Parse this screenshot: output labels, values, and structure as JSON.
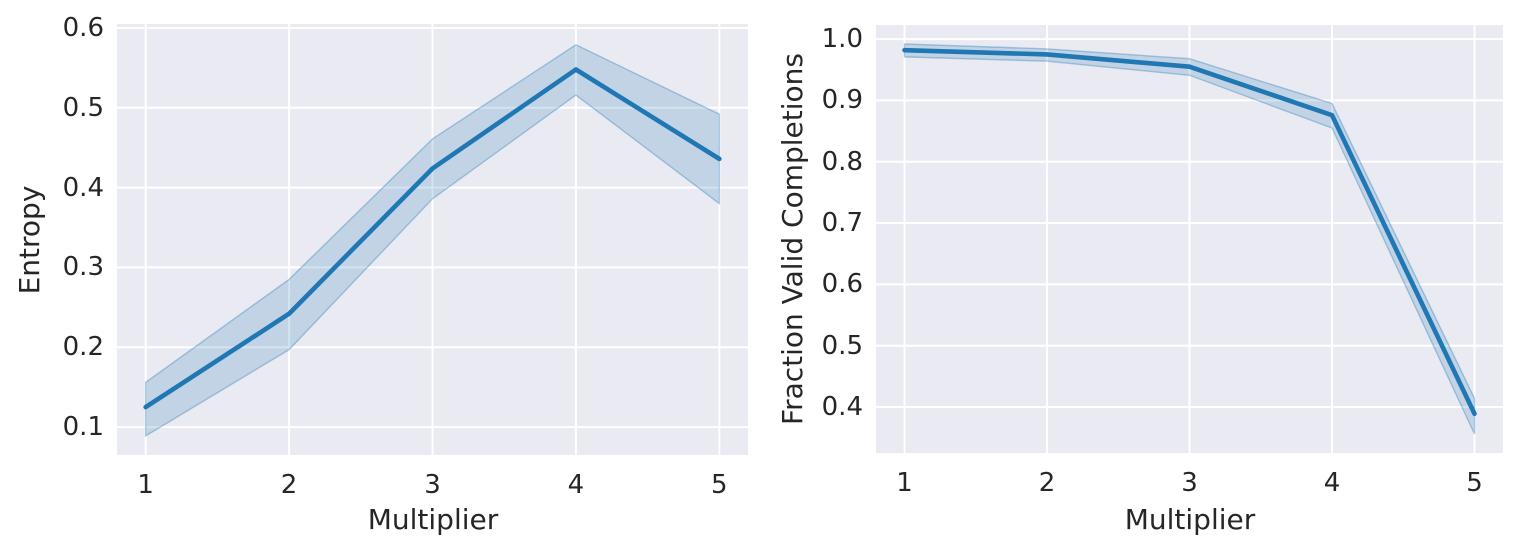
{
  "figure": {
    "background": "#ffffff",
    "axes_background": "#eaeaf2",
    "grid_color": "#ffffff",
    "line_color": "#1f77b4",
    "band_fill": "rgba(31,119,180,0.2)",
    "band_edge": "rgba(31,119,180,0.35)",
    "text_color": "#262626"
  },
  "chart_data": [
    {
      "type": "line",
      "title": "",
      "xlabel": "Multiplier",
      "ylabel": "Entropy",
      "grid": true,
      "legend": false,
      "x": [
        1,
        2,
        3,
        4,
        5
      ],
      "xticks": [
        1,
        2,
        3,
        4,
        5
      ],
      "yticks": [
        0.1,
        0.2,
        0.3,
        0.4,
        0.5,
        0.6
      ],
      "xlim": [
        0.8,
        5.2
      ],
      "ylim": [
        0.065,
        0.605
      ],
      "series": [
        {
          "name": "entropy",
          "values": [
            0.125,
            0.242,
            0.424,
            0.548,
            0.436
          ],
          "ci_low": [
            0.089,
            0.197,
            0.386,
            0.516,
            0.38
          ],
          "ci_high": [
            0.156,
            0.285,
            0.461,
            0.579,
            0.492
          ]
        }
      ]
    },
    {
      "type": "line",
      "title": "",
      "xlabel": "Multiplier",
      "ylabel": "Fraction Valid Completions",
      "grid": true,
      "legend": false,
      "x": [
        1,
        2,
        3,
        4,
        5
      ],
      "xticks": [
        1,
        2,
        3,
        4,
        5
      ],
      "yticks": [
        0.4,
        0.5,
        0.6,
        0.7,
        0.8,
        0.9,
        1.0
      ],
      "xlim": [
        0.8,
        5.2
      ],
      "ylim": [
        0.325,
        1.023
      ],
      "series": [
        {
          "name": "fraction_valid_completions",
          "values": [
            0.982,
            0.975,
            0.955,
            0.876,
            0.389
          ],
          "ci_low": [
            0.971,
            0.964,
            0.941,
            0.855,
            0.356
          ],
          "ci_high": [
            0.992,
            0.984,
            0.968,
            0.895,
            0.414
          ]
        }
      ]
    }
  ]
}
